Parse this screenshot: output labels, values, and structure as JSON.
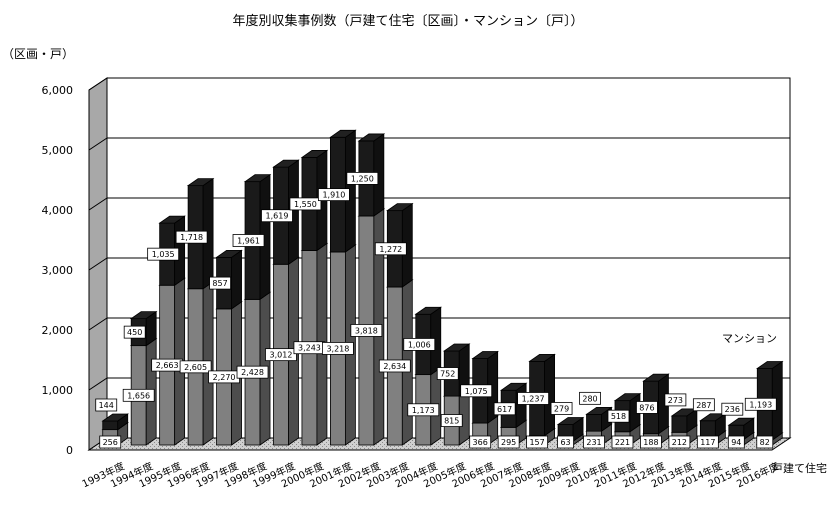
{
  "chart_data": {
    "type": "bar",
    "stacked": true,
    "three_d": true,
    "title": "年度別収集事例数（戸建て住宅〔区画〕・マンション〔戸〕）",
    "unit_label": "（区画・戸）",
    "categories": [
      "1993年度",
      "1994年度",
      "1995年度",
      "1996年度",
      "1997年度",
      "1998年度",
      "1999年度",
      "2000年度",
      "2001年度",
      "2002年度",
      "2003年度",
      "2004年度",
      "2005年度",
      "2006年度",
      "2007年度",
      "2008年度",
      "2009年度",
      "2010年度",
      "2011年度",
      "2012年度",
      "2013年度",
      "2014年度",
      "2015年度",
      "2016年度"
    ],
    "series": [
      {
        "name": "戸建て住宅",
        "color": "#808080",
        "values": [
          256,
          1656,
          2663,
          2605,
          2270,
          2428,
          3012,
          3243,
          3218,
          3818,
          2634,
          1173,
          815,
          366,
          295,
          157,
          63,
          231,
          221,
          188,
          212,
          117,
          94,
          82
        ],
        "labels": [
          "256",
          "1,656",
          "2,663",
          "2,605",
          "2,270",
          "2,428",
          "3,012",
          "3,243",
          "3,218",
          "3,818",
          "2,634",
          "1,173",
          "815",
          "366",
          "295",
          "157",
          "63",
          "231",
          "221",
          "188",
          "212",
          "117",
          "94",
          "82"
        ]
      },
      {
        "name": "マンション",
        "color": "#1a1a1a",
        "values": [
          144,
          450,
          1035,
          1718,
          857,
          1961,
          1619,
          1550,
          1910,
          1250,
          1272,
          1006,
          752,
          1075,
          617,
          1237,
          279,
          280,
          518,
          876,
          273,
          287,
          236,
          1193
        ],
        "labels": [
          "144",
          "450",
          "1,035",
          "1,718",
          "857",
          "1,961",
          "1,619",
          "1,550",
          "1,910",
          "1,250",
          "1,272",
          "1,006",
          "752",
          "1,075",
          "617",
          "1,237",
          "279",
          "280",
          "518",
          "876",
          "273",
          "287",
          "236",
          "1,193"
        ]
      }
    ],
    "ylim": [
      0,
      6000
    ],
    "yticks": [
      0,
      1000,
      2000,
      3000,
      4000,
      5000,
      6000
    ],
    "ytick_labels": [
      "0",
      "1,000",
      "2,000",
      "3,000",
      "4,000",
      "5,000",
      "6,000"
    ],
    "grid": true,
    "legend": "series labels at right end of bars"
  }
}
